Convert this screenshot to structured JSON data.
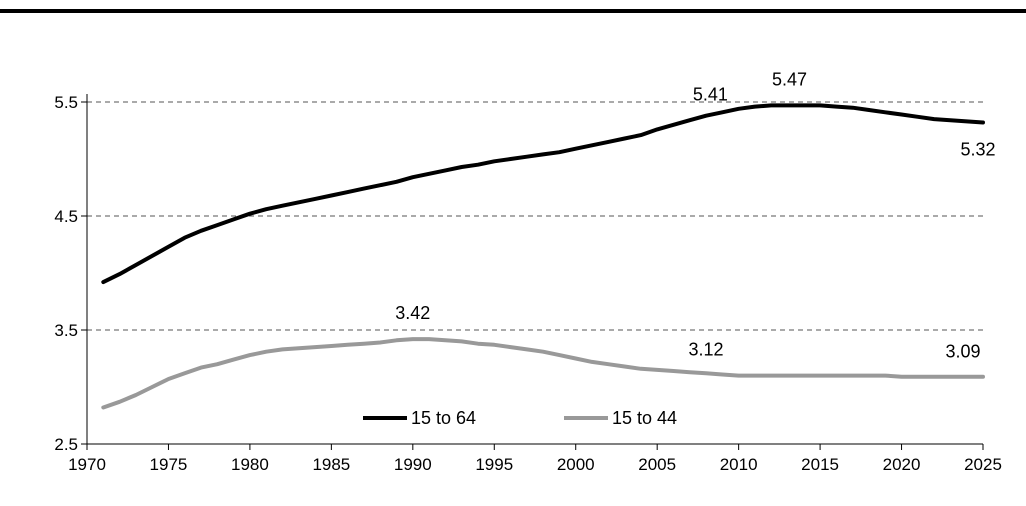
{
  "chart_data": {
    "type": "line",
    "title": "",
    "xlabel": "",
    "ylabel": "",
    "xlim": [
      1970,
      2025
    ],
    "ylim": [
      2.5,
      5.5
    ],
    "x_ticks": [
      "1970",
      "1975",
      "1980",
      "1985",
      "1990",
      "1995",
      "2000",
      "2005",
      "2010",
      "2015",
      "2020",
      "2025"
    ],
    "y_ticks": [
      "2.5",
      "3.5",
      "4.5",
      "5.5"
    ],
    "grid": "horizontal dashed at 3.5, 4.5, 5.5",
    "legend_position": "bottom-center inside plot",
    "series": [
      {
        "name": "15 to 64",
        "color": "#000000",
        "x": [
          1971,
          1972,
          1973,
          1974,
          1975,
          1976,
          1977,
          1978,
          1979,
          1980,
          1981,
          1982,
          1983,
          1984,
          1985,
          1986,
          1987,
          1988,
          1989,
          1990,
          1991,
          1992,
          1993,
          1994,
          1995,
          1996,
          1997,
          1998,
          1999,
          2000,
          2001,
          2002,
          2003,
          2004,
          2005,
          2006,
          2007,
          2008,
          2009,
          2010,
          2011,
          2012,
          2013,
          2014,
          2015,
          2016,
          2017,
          2018,
          2019,
          2020,
          2021,
          2022,
          2023,
          2024,
          2025
        ],
        "values": [
          3.92,
          3.99,
          4.07,
          4.15,
          4.23,
          4.31,
          4.37,
          4.42,
          4.47,
          4.52,
          4.56,
          4.59,
          4.62,
          4.65,
          4.68,
          4.71,
          4.74,
          4.77,
          4.8,
          4.84,
          4.87,
          4.9,
          4.93,
          4.95,
          4.98,
          5.0,
          5.02,
          5.04,
          5.06,
          5.09,
          5.12,
          5.15,
          5.18,
          5.21,
          5.26,
          5.3,
          5.34,
          5.38,
          5.41,
          5.44,
          5.46,
          5.47,
          5.47,
          5.47,
          5.47,
          5.46,
          5.45,
          5.43,
          5.41,
          5.39,
          5.37,
          5.35,
          5.34,
          5.33,
          5.32
        ]
      },
      {
        "name": "15 to 44",
        "color": "#999999",
        "x": [
          1971,
          1972,
          1973,
          1974,
          1975,
          1976,
          1977,
          1978,
          1979,
          1980,
          1981,
          1982,
          1983,
          1984,
          1985,
          1986,
          1987,
          1988,
          1989,
          1990,
          1991,
          1992,
          1993,
          1994,
          1995,
          1996,
          1997,
          1998,
          1999,
          2000,
          2001,
          2002,
          2003,
          2004,
          2005,
          2006,
          2007,
          2008,
          2009,
          2010,
          2011,
          2012,
          2013,
          2014,
          2015,
          2016,
          2017,
          2018,
          2019,
          2020,
          2021,
          2022,
          2023,
          2024,
          2025
        ],
        "values": [
          2.82,
          2.87,
          2.93,
          3.0,
          3.07,
          3.12,
          3.17,
          3.2,
          3.24,
          3.28,
          3.31,
          3.33,
          3.34,
          3.35,
          3.36,
          3.37,
          3.38,
          3.39,
          3.41,
          3.42,
          3.42,
          3.41,
          3.4,
          3.38,
          3.37,
          3.35,
          3.33,
          3.31,
          3.28,
          3.25,
          3.22,
          3.2,
          3.18,
          3.16,
          3.15,
          3.14,
          3.13,
          3.12,
          3.11,
          3.1,
          3.1,
          3.1,
          3.1,
          3.1,
          3.1,
          3.1,
          3.1,
          3.1,
          3.1,
          3.09,
          3.09,
          3.09,
          3.09,
          3.09,
          3.09
        ]
      }
    ],
    "annotations": [
      {
        "text": "5.41",
        "series": 0,
        "x": 2009,
        "y": 5.41
      },
      {
        "text": "5.47",
        "series": 0,
        "x": 2013,
        "y": 5.47
      },
      {
        "text": "5.32",
        "series": 0,
        "x": 2025,
        "y": 5.32
      },
      {
        "text": "3.42",
        "series": 1,
        "x": 1990,
        "y": 3.42
      },
      {
        "text": "3.12",
        "series": 1,
        "x": 2008,
        "y": 3.12
      },
      {
        "text": "3.09",
        "series": 1,
        "x": 2025,
        "y": 3.09
      }
    ]
  }
}
